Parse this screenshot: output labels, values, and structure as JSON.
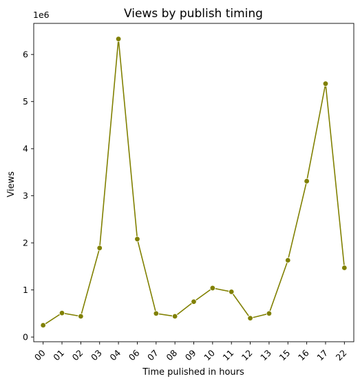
{
  "chart_data": {
    "type": "line",
    "title": "Views by publish timing",
    "xlabel": "Time pulished in hours",
    "ylabel": "Views",
    "y_offset_label": "1e6",
    "categories": [
      "00",
      "01",
      "02",
      "03",
      "04",
      "06",
      "07",
      "08",
      "09",
      "10",
      "11",
      "12",
      "13",
      "15",
      "16",
      "17",
      "22"
    ],
    "series": [
      {
        "values": [
          250000,
          510000,
          440000,
          1890000,
          6330000,
          2080000,
          500000,
          440000,
          750000,
          1040000,
          960000,
          400000,
          500000,
          1630000,
          3310000,
          5380000,
          1470000
        ]
      }
    ],
    "y_ticks": [
      0,
      1,
      2,
      3,
      4,
      5,
      6
    ],
    "y_tick_labels": [
      "0",
      "1",
      "2",
      "3",
      "4",
      "5",
      "6"
    ],
    "ylim": [
      -100000,
      6660000
    ],
    "grid": false,
    "legend": "none",
    "line_color": "#808000",
    "marker_color": "#808000"
  }
}
